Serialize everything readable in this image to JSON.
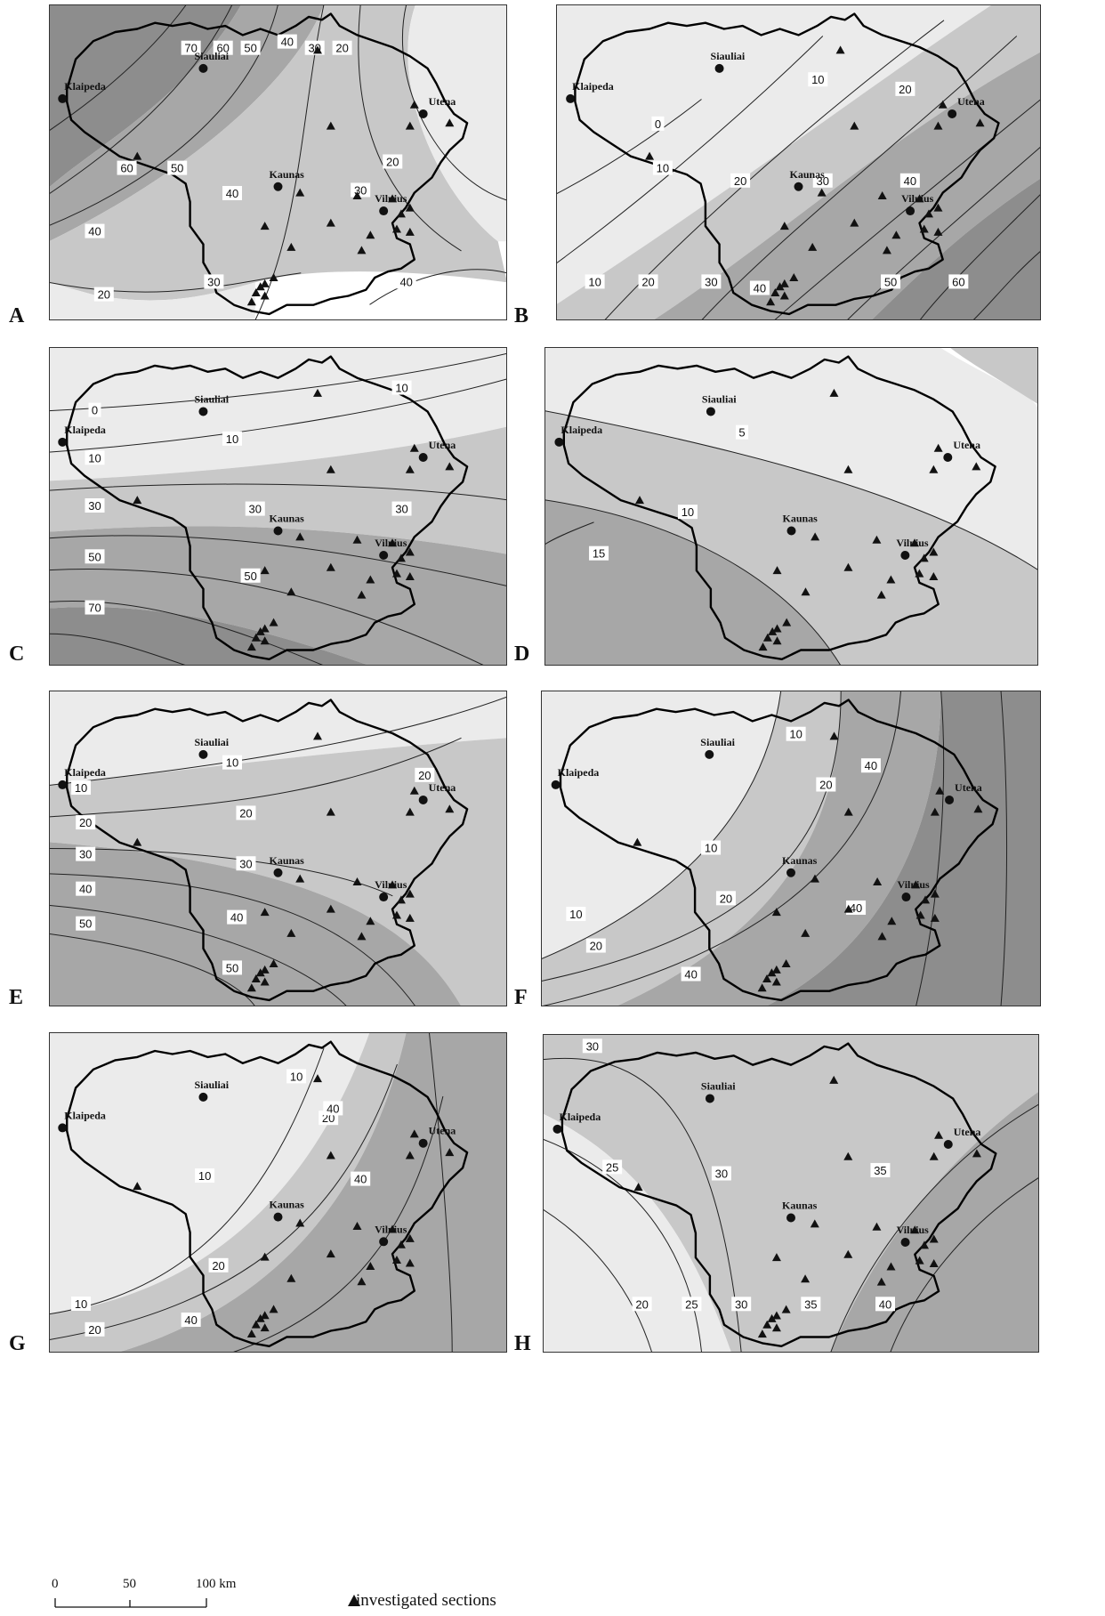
{
  "figure": {
    "scale_bar": {
      "labels": [
        "0",
        "50",
        "100 km"
      ]
    },
    "legend": {
      "symbol": "triangle",
      "label": "investigated sections"
    },
    "cities": [
      "Siauliai",
      "Klaipeda",
      "Utena",
      "Kaunas",
      "Vilnius"
    ],
    "colors": {
      "light": "#ebebeb",
      "mid": "#c8c8c8",
      "dark": "#a7a7a7",
      "darker": "#8d8d8d",
      "border": "#000000"
    }
  },
  "panels": [
    {
      "letter": "A",
      "contour_labels": [
        "70",
        "60",
        "50",
        "40",
        "30",
        "20",
        "60",
        "50",
        "40",
        "40",
        "30",
        "20",
        "20",
        "30",
        "40"
      ]
    },
    {
      "letter": "B",
      "contour_labels": [
        "0",
        "10",
        "10",
        "20",
        "20",
        "30",
        "40",
        "10",
        "20",
        "30",
        "40",
        "50",
        "60"
      ]
    },
    {
      "letter": "C",
      "contour_labels": [
        "0",
        "10",
        "10",
        "10",
        "30",
        "30",
        "30",
        "50",
        "50",
        "70"
      ]
    },
    {
      "letter": "D",
      "contour_labels": [
        "5",
        "10",
        "15"
      ]
    },
    {
      "letter": "E",
      "contour_labels": [
        "10",
        "10",
        "20",
        "20",
        "20",
        "30",
        "30",
        "40",
        "40",
        "50",
        "50"
      ]
    },
    {
      "letter": "F",
      "contour_labels": [
        "10",
        "10",
        "10",
        "20",
        "20",
        "40",
        "40",
        "40",
        "20"
      ]
    },
    {
      "letter": "G",
      "contour_labels": [
        "10",
        "10",
        "10",
        "20",
        "20",
        "40",
        "40",
        "20",
        "40"
      ]
    },
    {
      "letter": "H",
      "contour_labels": [
        "30",
        "25",
        "30",
        "35",
        "20",
        "25",
        "30",
        "35",
        "40"
      ]
    }
  ]
}
